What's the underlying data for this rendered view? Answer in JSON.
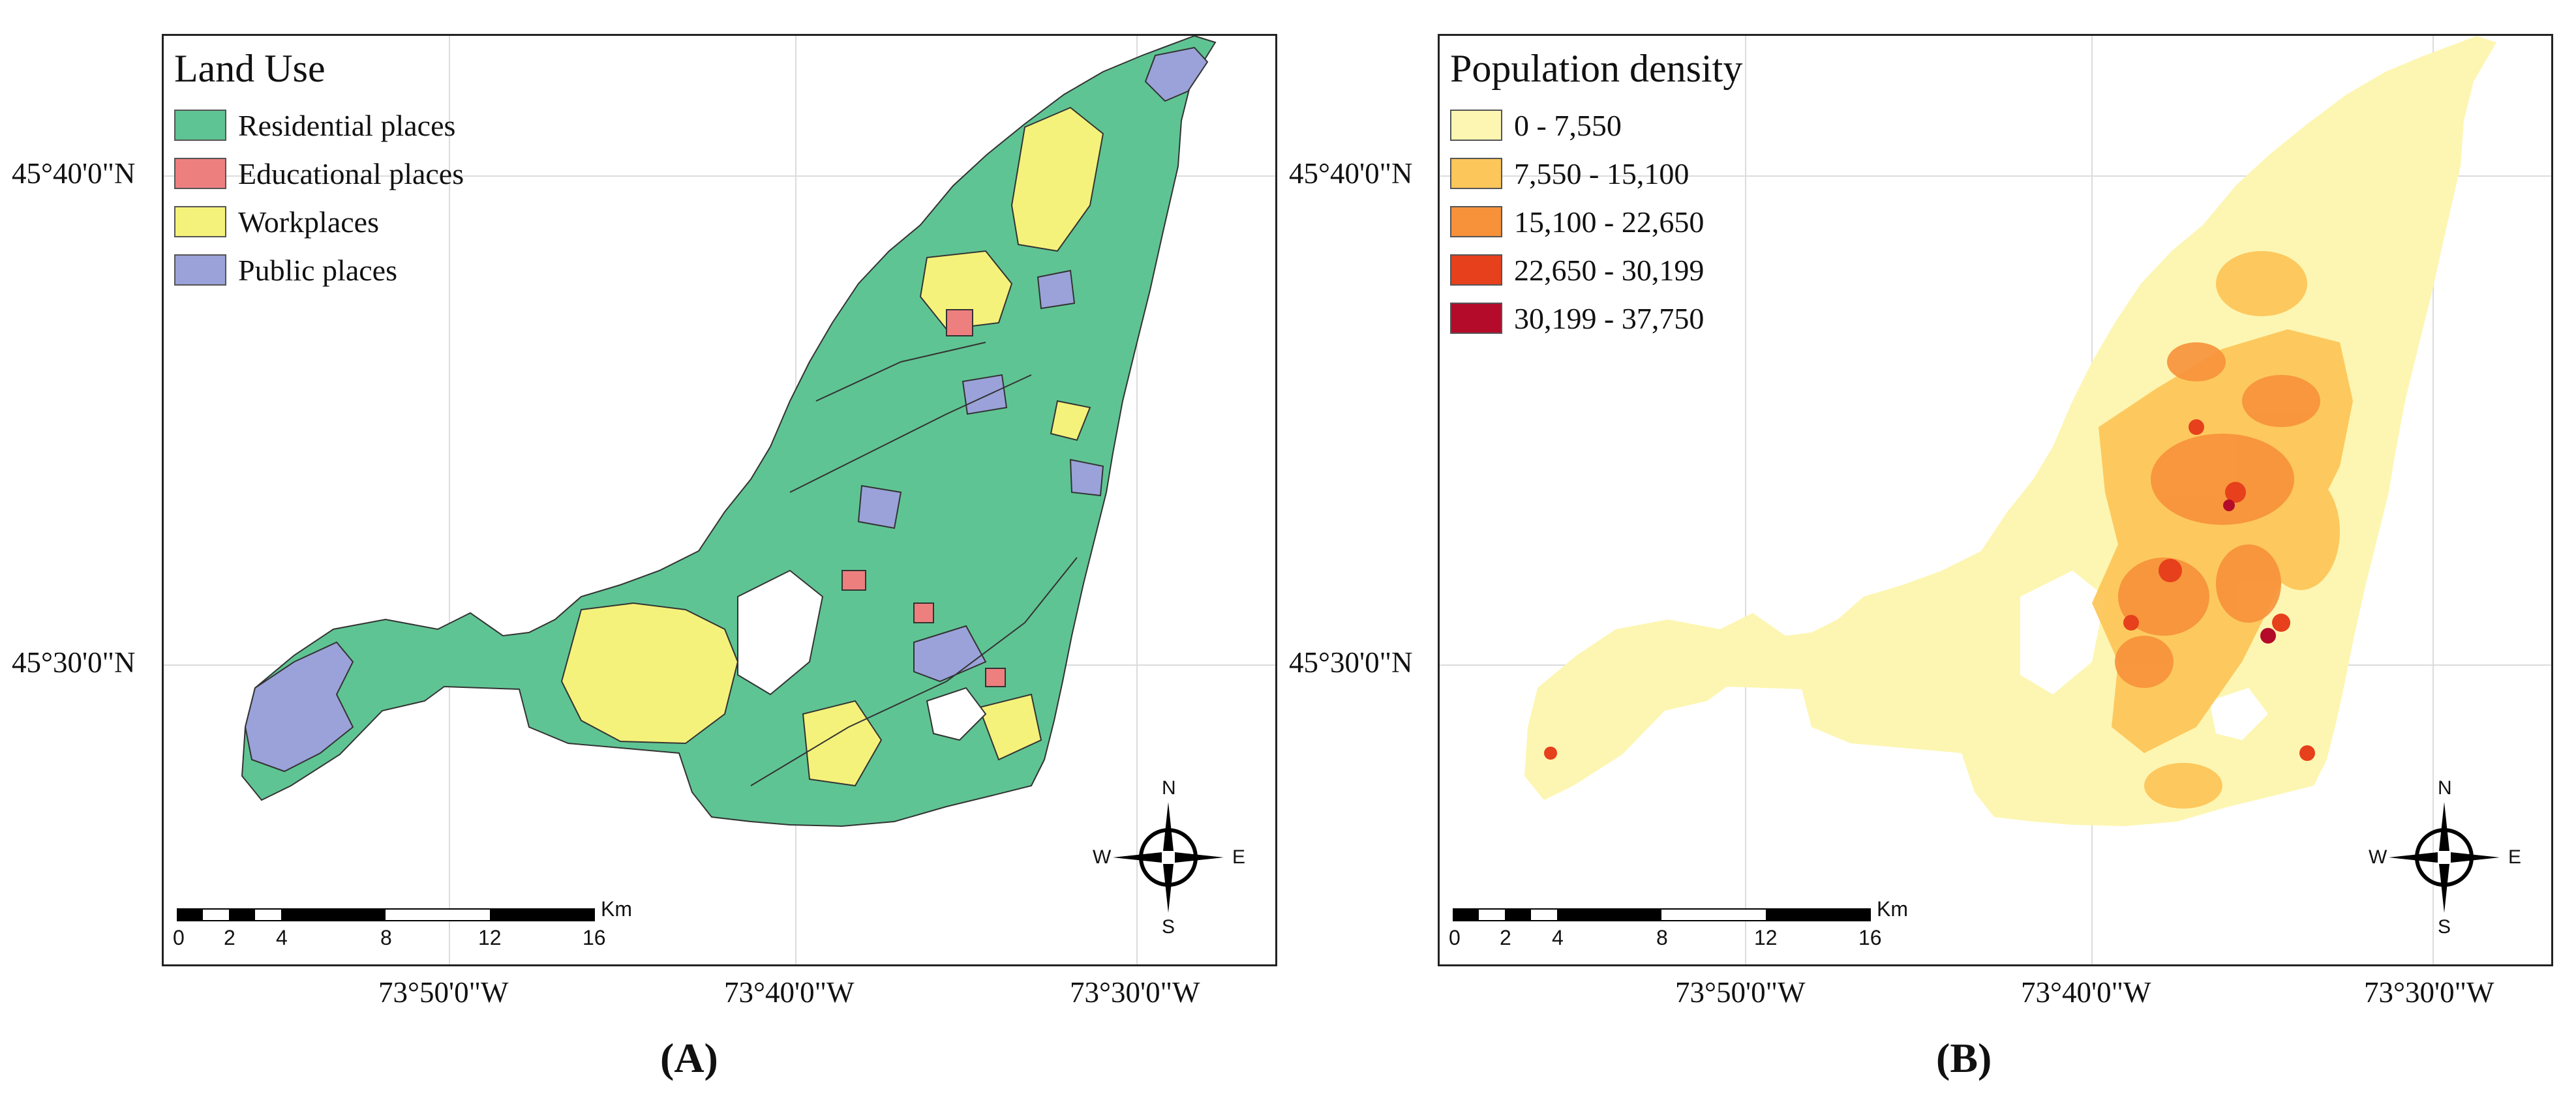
{
  "panel_a": {
    "legend_title": "Land Use",
    "legend": [
      {
        "label": "Residential places",
        "color": "#5fc493"
      },
      {
        "label": "Educational places",
        "color": "#ee7f7f"
      },
      {
        "label": "Workplaces",
        "color": "#f4f27a"
      },
      {
        "label": "Public places",
        "color": "#9aa2d9"
      }
    ],
    "caption": "(A)"
  },
  "panel_b": {
    "legend_title": "Population density",
    "legend": [
      {
        "label": "0 - 7,550",
        "color": "#fdf6b2"
      },
      {
        "label": "7,550 - 15,100",
        "color": "#fdc65a"
      },
      {
        "label": "15,100 - 22,650",
        "color": "#f7913a"
      },
      {
        "label": "22,650 - 30,199",
        "color": "#e6401c"
      },
      {
        "label": "30,199 - 37,750",
        "color": "#b40b2a"
      }
    ],
    "caption": "(B)"
  },
  "axes": {
    "lat_labels": [
      "45°40'0\"N",
      "45°30'0\"N"
    ],
    "lon_labels": [
      "73°50'0\"W",
      "73°40'0\"W",
      "73°30'0\"W"
    ]
  },
  "scale_bar": {
    "unit": "Km",
    "ticks": [
      "0",
      "2",
      "4",
      "8",
      "12",
      "16"
    ]
  },
  "compass": {
    "n": "N",
    "s": "S",
    "e": "E",
    "w": "W"
  }
}
